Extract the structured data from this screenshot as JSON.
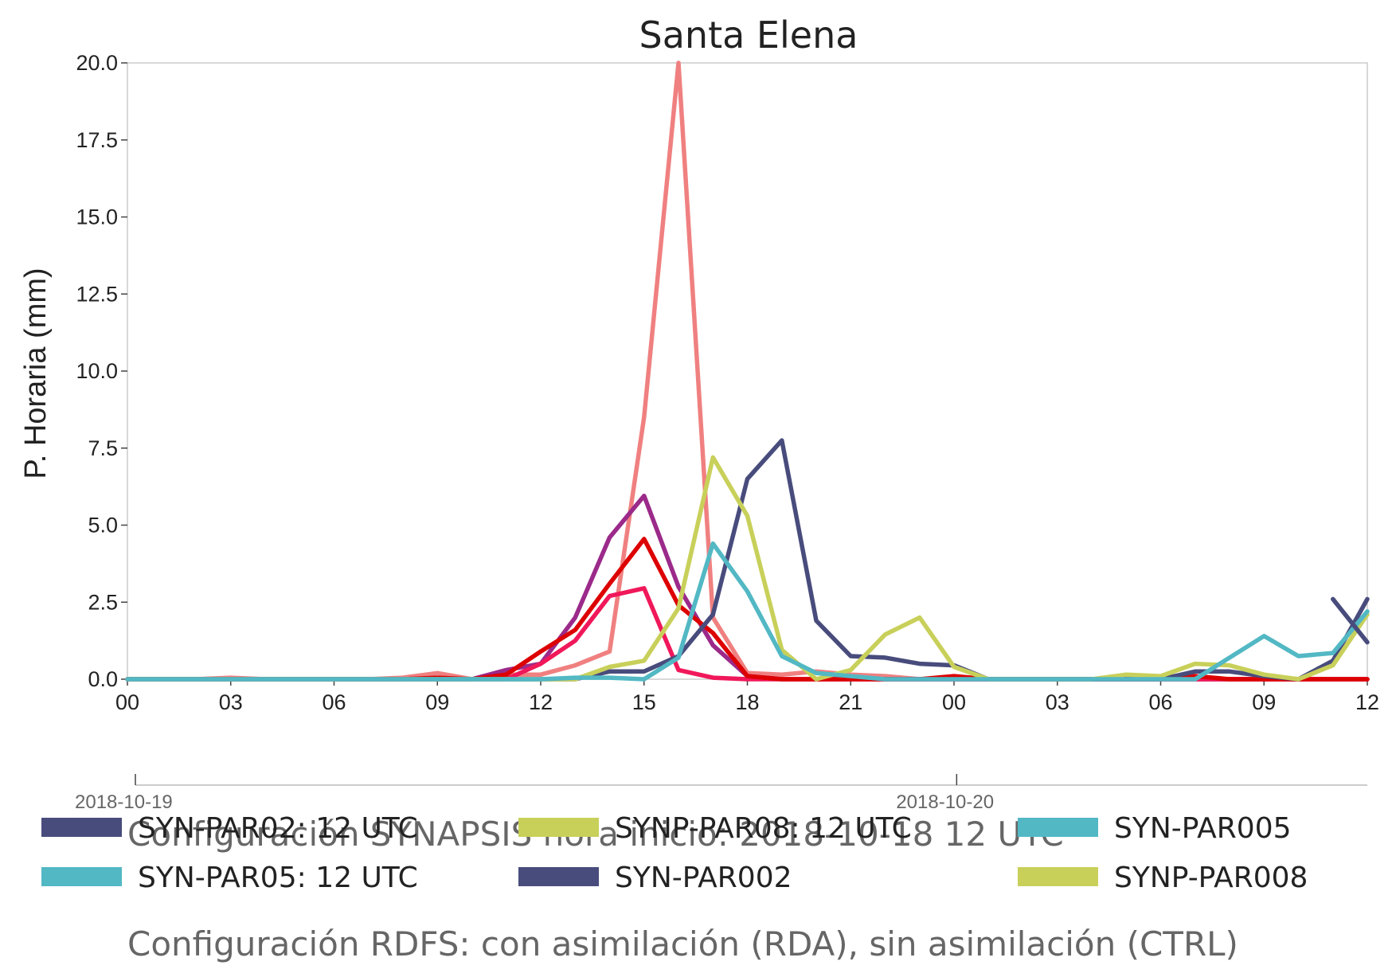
{
  "chart_data": {
    "type": "line",
    "title": "Santa Elena",
    "ylabel": "P. Horaria (mm)",
    "xlabel": "",
    "ylim": [
      0,
      20
    ],
    "yticks": [
      "0.0",
      "2.5",
      "5.0",
      "7.5",
      "10.0",
      "12.5",
      "15.0",
      "17.5",
      "20.0"
    ],
    "ytick_values": [
      0,
      2.5,
      5,
      7.5,
      10,
      12.5,
      15,
      17.5,
      20
    ],
    "xlim": [
      0,
      36
    ],
    "xtick_labels": [
      "00",
      "03",
      "06",
      "09",
      "12",
      "15",
      "18",
      "21",
      "00",
      "03",
      "06",
      "09",
      "12"
    ],
    "xtick_hours": [
      0,
      3,
      6,
      9,
      12,
      15,
      18,
      21,
      24,
      27,
      30,
      33,
      36
    ],
    "date_labels": [
      {
        "text": "2018-10-19",
        "hour": 0
      },
      {
        "text": "2018-10-20",
        "hour": 24
      }
    ],
    "grid": false,
    "x_hours": [
      0,
      1,
      2,
      3,
      4,
      5,
      6,
      7,
      8,
      9,
      10,
      11,
      12,
      13,
      14,
      15,
      16,
      17,
      18,
      19,
      20,
      21,
      22,
      23,
      24,
      25,
      26,
      27,
      28,
      29,
      30,
      31,
      32,
      33,
      34,
      35,
      36
    ],
    "series": [
      {
        "name": "",
        "color": "#f08080",
        "values": [
          0,
          0,
          0,
          0.05,
          0,
          0,
          0,
          0,
          0.05,
          0.2,
          0,
          0.15,
          0.15,
          0.45,
          0.9,
          8.5,
          20.0,
          2.0,
          0.2,
          0.15,
          0.25,
          0.15,
          0.1,
          0,
          0,
          0,
          0,
          0,
          0,
          0,
          0,
          0,
          0,
          0,
          0,
          0,
          0
        ]
      },
      {
        "name": "",
        "color": "#9b2a8a",
        "values": [
          0,
          0,
          0,
          0,
          0,
          0,
          0,
          0,
          0,
          0,
          0,
          0.3,
          0.5,
          2.0,
          4.6,
          5.95,
          3.0,
          1.1,
          0.1,
          0,
          0,
          0,
          0,
          0,
          0,
          0,
          0,
          0,
          0,
          0,
          0,
          0,
          0,
          0,
          0,
          0,
          0
        ]
      },
      {
        "name": "",
        "color": "#f0185a",
        "values": [
          0,
          0,
          0,
          0,
          0,
          0,
          0,
          0,
          0,
          0,
          0,
          0,
          0.5,
          1.25,
          2.7,
          2.95,
          0.3,
          0.05,
          0,
          0,
          0,
          0,
          0,
          0,
          0,
          0,
          0,
          0,
          0,
          0,
          0,
          0,
          0,
          0,
          0,
          0,
          0
        ]
      },
      {
        "name": "",
        "color": "#dd0000",
        "values": [
          0,
          0,
          0,
          0,
          0,
          0,
          0,
          0,
          0,
          0.05,
          0,
          0.15,
          0.9,
          1.6,
          3.1,
          4.55,
          2.4,
          1.5,
          0.1,
          0,
          0,
          0,
          0,
          0,
          0.1,
          0,
          0,
          0,
          0,
          0,
          0,
          0.1,
          0,
          0,
          0,
          0,
          0
        ]
      },
      {
        "name": "SYN-PAR02: 12 UTC",
        "color": "#484c7c",
        "values": [
          0,
          0,
          0,
          0,
          0,
          0,
          0,
          0,
          0,
          0,
          0,
          0,
          0,
          0,
          0.25,
          0.25,
          0.75,
          2.1,
          6.5,
          7.75,
          1.9,
          0.75,
          0.7,
          0.5,
          0.45,
          0,
          0,
          0,
          0,
          0,
          0,
          0.25,
          0.25,
          0.1,
          0,
          0.6,
          2.6
        ]
      },
      {
        "name": "SYNP-PAR08: 12 UTC",
        "color": "#c8d05a",
        "values": [
          0,
          0,
          0,
          0,
          0,
          0,
          0,
          0,
          0,
          0,
          0,
          0,
          0,
          0,
          0.4,
          0.6,
          2.3,
          7.2,
          5.3,
          0.95,
          0,
          0.3,
          1.45,
          2.0,
          0.4,
          0,
          0,
          0,
          0,
          0.15,
          0.1,
          0.5,
          0.45,
          0.15,
          0,
          0.45,
          2.1
        ]
      },
      {
        "name": "SYN-PAR005",
        "color": "#52b8c4",
        "values": [
          0,
          0,
          0,
          0,
          0,
          0,
          0,
          0,
          0,
          0,
          0,
          0,
          0,
          0.05,
          0.05,
          0,
          0.7,
          4.4,
          2.85,
          0.75,
          0.2,
          0.1,
          0,
          0,
          0,
          0,
          0,
          0,
          0,
          0,
          0,
          0,
          0.7,
          1.4,
          0.75,
          0.85,
          2.2
        ]
      },
      {
        "name": "SYN-PAR05: 12 UTC",
        "color": "#52b8c4",
        "values": []
      },
      {
        "name": "SYN-PAR002",
        "color": "#484c7c",
        "values": []
      },
      {
        "name": "SYNP-PAR008",
        "color": "#c8d05a",
        "values": []
      }
    ],
    "overlay_series": [
      {
        "name": "",
        "color": "#484c7c",
        "from_hour": 35,
        "values": [
          2.6,
          1.2
        ]
      }
    ],
    "legend": [
      {
        "label": "SYN-PAR02: 12 UTC",
        "color": "#484c7c"
      },
      {
        "label": "SYNP-PAR08: 12 UTC",
        "color": "#c8d05a"
      },
      {
        "label": "SYN-PAR005",
        "color": "#52b8c4"
      },
      {
        "label": "SYN-PAR05: 12 UTC",
        "color": "#52b8c4"
      },
      {
        "label": "SYN-PAR002",
        "color": "#484c7c"
      },
      {
        "label": "SYNP-PAR008",
        "color": "#c8d05a"
      }
    ],
    "legend_placement": "bottom",
    "captions": [
      "Configuración SYNAPSIS hora inicio: 2018-10-18 12 UTC",
      "Configuración RDFS: con asimilación (RDA), sin asimilación (CTRL)"
    ]
  }
}
